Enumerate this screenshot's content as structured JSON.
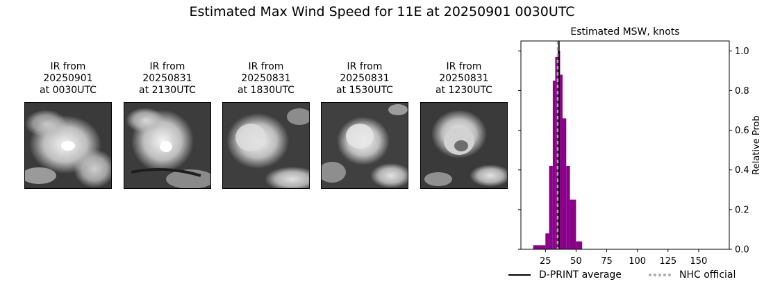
{
  "title": "Estimated Max Wind Speed for 11E at 20250901 0030UTC",
  "panels": [
    {
      "line1": "IR from",
      "line2": "20250901",
      "line3": "at 0030UTC"
    },
    {
      "line1": "IR from",
      "line2": "20250831",
      "line3": "at 2130UTC"
    },
    {
      "line1": "IR from",
      "line2": "20250831",
      "line3": "at 1830UTC"
    },
    {
      "line1": "IR from",
      "line2": "20250831",
      "line3": "at 1530UTC"
    },
    {
      "line1": "IR from",
      "line2": "20250831",
      "line3": "at 1230UTC"
    }
  ],
  "chart_data": {
    "type": "bar",
    "title": "Estimated MSW, knots",
    "xlabel": "",
    "ylabel": "Relative Prob",
    "xlim": [
      5,
      175
    ],
    "ylim": [
      0,
      1.05
    ],
    "xticks": [
      25,
      50,
      75,
      100,
      125,
      150
    ],
    "yticks": [
      0.0,
      0.2,
      0.4,
      0.6,
      0.8,
      1.0
    ],
    "ytick_labels": [
      "0.0",
      "0.2",
      "0.4",
      "0.6",
      "0.8",
      "1.0"
    ],
    "bar_color": "#8b008b",
    "bins": [
      {
        "x0": 15,
        "x1": 25,
        "value": 0.02
      },
      {
        "x0": 25,
        "x1": 28,
        "value": 0.08
      },
      {
        "x0": 28,
        "x1": 31,
        "value": 0.42
      },
      {
        "x0": 31,
        "x1": 33,
        "value": 0.85
      },
      {
        "x0": 33,
        "x1": 35,
        "value": 0.97
      },
      {
        "x0": 35,
        "x1": 37,
        "value": 1.0
      },
      {
        "x0": 37,
        "x1": 39,
        "value": 0.88
      },
      {
        "x0": 39,
        "x1": 42,
        "value": 0.66
      },
      {
        "x0": 42,
        "x1": 45,
        "value": 0.42
      },
      {
        "x0": 45,
        "x1": 50,
        "value": 0.25
      },
      {
        "x0": 50,
        "x1": 55,
        "value": 0.04
      }
    ],
    "dprint_average": 36,
    "nhc_official": 35,
    "legend": [
      {
        "label": "D-PRINT average",
        "style": "solid",
        "color": "#000000"
      },
      {
        "label": "NHC official",
        "style": "dashed",
        "color": "#aaaaaa"
      }
    ],
    "legend_position": "bottom"
  }
}
